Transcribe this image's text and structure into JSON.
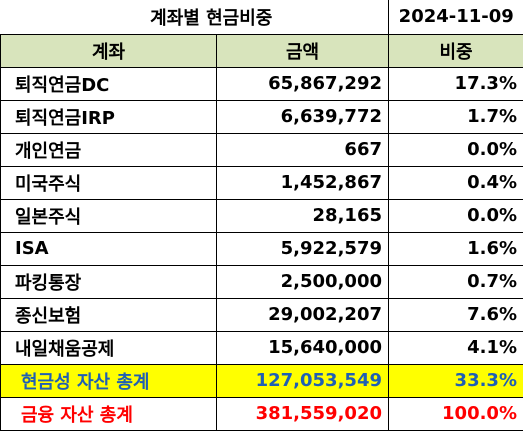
{
  "title": "계좌별 현금비중",
  "date": "2024-11-09",
  "headers": [
    "계좌",
    "금액",
    "비중"
  ],
  "rows": [
    {
      "account": "퇴직연금DC",
      "amount": "65,867,292",
      "ratio": "17.3%"
    },
    {
      "account": "퇴직연금IRP",
      "amount": "6,639,772",
      "ratio": "1.7%"
    },
    {
      "account": "개인연금",
      "amount": "667",
      "ratio": "0.0%"
    },
    {
      "account": "미국주식",
      "amount": "1,452,867",
      "ratio": "0.4%"
    },
    {
      "account": "일본주식",
      "amount": "28,165",
      "ratio": "0.0%"
    },
    {
      "account": "ISA",
      "amount": "5,922,579",
      "ratio": "1.6%"
    },
    {
      "account": "파킹통장",
      "amount": "2,500,000",
      "ratio": "0.7%"
    },
    {
      "account": "종신보험",
      "amount": "29,002,207",
      "ratio": "7.6%"
    },
    {
      "account": "내일채움공제",
      "amount": "15,640,000",
      "ratio": "4.1%"
    }
  ],
  "cash_total": {
    "label": "현금성 자산 총계",
    "amount": "127,053,549",
    "ratio": "33.3%"
  },
  "financial_total": {
    "label": "금융 자산 총계",
    "amount": "381,559,020",
    "ratio": "100.0%"
  },
  "colors": {
    "header_bg": "#d8e4bc",
    "cash_bg": "#ffff00",
    "cash_text": "#1f5fb4",
    "total_text": "#ff0000"
  }
}
